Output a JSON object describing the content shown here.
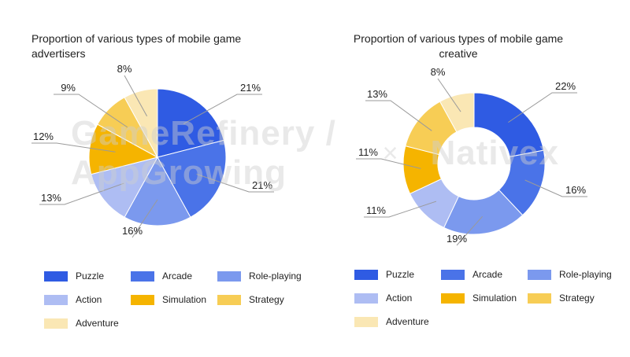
{
  "watermark": {
    "left": "GameRefinery / AppGrowing",
    "sep": "×",
    "right": "Nativex"
  },
  "chart_data": [
    {
      "type": "pie",
      "title": "Proportion of various types of mobile game advertisers",
      "categories": [
        "Puzzle",
        "Arcade",
        "Role-playing",
        "Action",
        "Simulation",
        "Strategy",
        "Adventure"
      ],
      "values": [
        21,
        21,
        16,
        13,
        12,
        9,
        8
      ],
      "labels": [
        "21%",
        "21%",
        "16%",
        "13%",
        "12%",
        "9%",
        "8%"
      ],
      "colors": [
        "#2f5be3",
        "#4a73e8",
        "#7b99ee",
        "#aebdf3",
        "#f5b400",
        "#f7cd55",
        "#fae7b4"
      ],
      "donut": false,
      "legend_position": "bottom"
    },
    {
      "type": "pie",
      "title": "Proportion of various types of mobile game creative",
      "categories": [
        "Puzzle",
        "Arcade",
        "Role-playing",
        "Action",
        "Simulation",
        "Strategy",
        "Adventure"
      ],
      "values": [
        22,
        16,
        19,
        11,
        11,
        13,
        8
      ],
      "labels": [
        "22%",
        "16%",
        "19%",
        "11%",
        "11%",
        "13%",
        "8%"
      ],
      "colors": [
        "#2f5be3",
        "#4a73e8",
        "#7b99ee",
        "#aebdf3",
        "#f5b400",
        "#f7cd55",
        "#fae7b4"
      ],
      "donut": true,
      "legend_position": "bottom"
    }
  ]
}
